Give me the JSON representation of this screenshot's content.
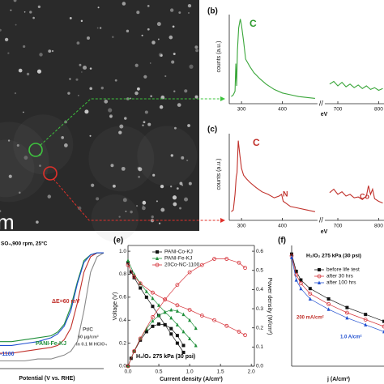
{
  "image": {
    "scale_label": "m"
  },
  "chart_data": [
    {
      "type": "line",
      "panel_label": "(b)",
      "xlabel": "eV",
      "ylabel": "counts (a.u.)",
      "xlim": [
        270,
        813
      ],
      "axis_break": [
        480,
        674
      ],
      "ylim": [
        0,
        1
      ],
      "xticks": [
        300,
        400,
        700,
        800
      ],
      "annotations": [
        "C"
      ],
      "series": [
        {
          "color": "#3aa63a",
          "x": [
            275,
            280,
            284,
            286,
            288,
            290,
            293,
            297,
            300,
            305,
            310,
            320,
            330,
            345,
            360,
            380,
            400,
            420,
            440,
            460,
            480
          ],
          "values": [
            0.08,
            0.1,
            0.14,
            0.45,
            0.2,
            0.6,
            0.85,
            0.95,
            0.88,
            0.7,
            0.5,
            0.42,
            0.35,
            0.28,
            0.22,
            0.16,
            0.12,
            0.1,
            0.08,
            0.07,
            0.06
          ]
        },
        {
          "color": "#3aa63a",
          "x": [
            680,
            690,
            700,
            710,
            720,
            730,
            740,
            750,
            760,
            770,
            780,
            790,
            800,
            810
          ],
          "values": [
            0.22,
            0.25,
            0.2,
            0.24,
            0.19,
            0.22,
            0.18,
            0.21,
            0.17,
            0.2,
            0.16,
            0.18,
            0.15,
            0.17
          ]
        }
      ]
    },
    {
      "type": "line",
      "panel_label": "(c)",
      "xlabel": "eV",
      "ylabel": "counts (a.u.)",
      "xlim": [
        270,
        813
      ],
      "axis_break": [
        480,
        674
      ],
      "ylim": [
        0,
        1
      ],
      "xticks": [
        300,
        400,
        700,
        800
      ],
      "annotations": [
        "C",
        "N",
        "Co"
      ],
      "series": [
        {
          "color": "#c0302a",
          "x": [
            275,
            280,
            284,
            287,
            289,
            292,
            296,
            300,
            305,
            312,
            320,
            335,
            350,
            365,
            380,
            392,
            398,
            402,
            408,
            420,
            440,
            460,
            480
          ],
          "values": [
            0.1,
            0.12,
            0.3,
            0.5,
            0.55,
            0.92,
            0.75,
            0.6,
            0.52,
            0.48,
            0.44,
            0.38,
            0.33,
            0.3,
            0.26,
            0.28,
            0.3,
            0.22,
            0.2,
            0.16,
            0.14,
            0.12,
            0.1
          ]
        },
        {
          "color": "#c0302a",
          "x": [
            680,
            690,
            700,
            710,
            720,
            730,
            740,
            750,
            760,
            770,
            775,
            780,
            785,
            790,
            800,
            810
          ],
          "values": [
            0.32,
            0.36,
            0.3,
            0.33,
            0.28,
            0.3,
            0.26,
            0.27,
            0.24,
            0.28,
            0.4,
            0.3,
            0.36,
            0.25,
            0.22,
            0.2
          ]
        }
      ]
    },
    {
      "type": "line",
      "xlabel": "Potential (V vs. RHE)",
      "xlim": [
        0.15,
        1.0
      ],
      "ylim": [
        -6,
        0.3
      ],
      "annotations": [
        "SO₄,900 rpm, 25°C",
        "ΔE=60 mV",
        "PANI-Fe-KJ",
        "-1100",
        "Pt/C",
        "60 μg/cm²",
        "in 0.1 M HClO₄"
      ],
      "series": [
        {
          "color": "#888888",
          "x": [
            0.2,
            0.3,
            0.4,
            0.5,
            0.6,
            0.65,
            0.7,
            0.75,
            0.8,
            0.85,
            0.9,
            0.95,
            1.0
          ],
          "values": [
            -5.6,
            -5.6,
            -5.6,
            -5.5,
            -5.5,
            -5.4,
            -5.3,
            -5.1,
            -4.6,
            -3.0,
            -1.0,
            -0.2,
            0
          ]
        },
        {
          "color": "#c0302a",
          "x": [
            0.2,
            0.3,
            0.4,
            0.5,
            0.6,
            0.65,
            0.7,
            0.75,
            0.8,
            0.85,
            0.9,
            0.95,
            1.0
          ],
          "values": [
            -5.2,
            -5.2,
            -5.1,
            -5.0,
            -4.9,
            -4.8,
            -4.5,
            -3.9,
            -2.6,
            -1.0,
            -0.2,
            0,
            0
          ]
        },
        {
          "color": "#1f8f3a",
          "x": [
            0.2,
            0.3,
            0.4,
            0.5,
            0.6,
            0.65,
            0.7,
            0.75,
            0.8,
            0.85,
            0.9,
            0.95,
            1.0
          ],
          "values": [
            -4.6,
            -4.6,
            -4.5,
            -4.4,
            -4.3,
            -4.1,
            -3.7,
            -2.8,
            -1.5,
            -0.4,
            -0.1,
            0,
            0
          ]
        },
        {
          "color": "#1f4fd0",
          "x": [
            0.2,
            0.3,
            0.4,
            0.5,
            0.6,
            0.65,
            0.7,
            0.75,
            0.8,
            0.85,
            0.9,
            0.95,
            1.0
          ],
          "values": [
            -4.8,
            -4.8,
            -4.7,
            -4.6,
            -4.4,
            -4.2,
            -3.8,
            -3.0,
            -1.6,
            -0.5,
            -0.1,
            0,
            0
          ]
        }
      ]
    },
    {
      "type": "line",
      "panel_label": "(e)",
      "xlabel": "Current density (A/cm²)",
      "ylabel": "Voltage (V)",
      "y2label": "Power density (W/cm²)",
      "xlim": [
        0,
        2.05
      ],
      "ylim": [
        0,
        1.05
      ],
      "y2lim": [
        0,
        0.63
      ],
      "xticks": [
        {
          "value": 0,
          "label": "0.0"
        },
        0.5,
        {
          "value": 1,
          "label": "1.0"
        },
        1.5,
        {
          "value": 2,
          "label": "2.0"
        }
      ],
      "yticks": [
        {
          "value": 0,
          "label": "0.0"
        },
        0.2,
        0.4,
        0.6,
        0.8,
        {
          "value": 1,
          "label": "1.0"
        }
      ],
      "y2ticks": [
        {
          "value": 0,
          "label": "0.0"
        },
        0.1,
        0.2,
        0.3,
        0.4,
        0.5,
        0.6
      ],
      "annotations": [
        "H₂/O₂ 275 kPa (30 psi)"
      ],
      "series": [
        {
          "name": "PANI-Co-KJ",
          "color": "#111111",
          "marker": "square",
          "x": [
            0,
            0.05,
            0.1,
            0.2,
            0.3,
            0.4,
            0.5,
            0.6,
            0.7,
            0.8,
            0.9
          ],
          "values": [
            0.9,
            0.82,
            0.77,
            0.68,
            0.6,
            0.52,
            0.44,
            0.36,
            0.28,
            0.2,
            0.12
          ]
        },
        {
          "name": "PANI-Fe-KJ",
          "color": "#1f8f3a",
          "marker": "triangle",
          "x": [
            0,
            0.1,
            0.2,
            0.3,
            0.4,
            0.5,
            0.6,
            0.7,
            0.8,
            0.9,
            1.0,
            1.1
          ],
          "values": [
            0.92,
            0.8,
            0.72,
            0.65,
            0.59,
            0.53,
            0.47,
            0.42,
            0.36,
            0.3,
            0.24,
            0.18
          ]
        },
        {
          "name": "20Co-NC-1100",
          "color": "#d6333a",
          "marker": "circle",
          "x": [
            0,
            0.1,
            0.2,
            0.4,
            0.6,
            0.8,
            1.0,
            1.2,
            1.4,
            1.6,
            1.8,
            1.9
          ],
          "values": [
            0.88,
            0.78,
            0.72,
            0.64,
            0.58,
            0.53,
            0.49,
            0.44,
            0.4,
            0.35,
            0.3,
            0.27
          ]
        },
        {
          "color": "#111111",
          "marker": "square",
          "axis": "y2",
          "x": [
            0,
            0.05,
            0.1,
            0.2,
            0.3,
            0.4,
            0.5,
            0.6,
            0.7,
            0.8,
            0.9
          ],
          "values": [
            0,
            0.041,
            0.077,
            0.136,
            0.18,
            0.208,
            0.22,
            0.216,
            0.196,
            0.16,
            0.108
          ]
        },
        {
          "color": "#1f8f3a",
          "marker": "triangle",
          "axis": "y2",
          "x": [
            0,
            0.1,
            0.2,
            0.3,
            0.4,
            0.5,
            0.6,
            0.7,
            0.8,
            0.9,
            1.0,
            1.1
          ],
          "values": [
            0,
            0.08,
            0.144,
            0.195,
            0.236,
            0.265,
            0.282,
            0.294,
            0.288,
            0.27,
            0.24,
            0.198
          ]
        },
        {
          "color": "#d6333a",
          "marker": "circle",
          "axis": "y2",
          "x": [
            0,
            0.1,
            0.2,
            0.4,
            0.6,
            0.8,
            1.0,
            1.2,
            1.4,
            1.6,
            1.8,
            1.9
          ],
          "values": [
            0,
            0.078,
            0.144,
            0.256,
            0.348,
            0.424,
            0.49,
            0.528,
            0.56,
            0.56,
            0.54,
            0.513
          ]
        }
      ]
    },
    {
      "type": "line",
      "panel_label": "(f)",
      "xlabel": "j (A/cm²)",
      "xlim": [
        0,
        1.0
      ],
      "ylim": [
        0.3,
        1.0
      ],
      "annotations": [
        "H₂/O₂ 275 kPa (30 psi)",
        "200 mA/cm²",
        "1.0 A/cm²"
      ],
      "series": [
        {
          "name": "before life test",
          "color": "#111111",
          "marker": "square",
          "x": [
            0,
            0.05,
            0.1,
            0.2,
            0.4,
            0.6,
            0.8,
            1.0
          ],
          "values": [
            0.95,
            0.85,
            0.8,
            0.75,
            0.69,
            0.64,
            0.6,
            0.56
          ]
        },
        {
          "name": "after 30 hrs",
          "color": "#d6333a",
          "marker": "circle",
          "x": [
            0,
            0.05,
            0.1,
            0.2,
            0.4,
            0.6,
            0.8,
            1.0
          ],
          "values": [
            0.94,
            0.83,
            0.78,
            0.72,
            0.66,
            0.61,
            0.57,
            0.53
          ]
        },
        {
          "name": "after 100 hrs",
          "color": "#1f4fd0",
          "marker": "triangle",
          "x": [
            0,
            0.05,
            0.1,
            0.2,
            0.4,
            0.6,
            0.8,
            1.0
          ],
          "values": [
            0.93,
            0.8,
            0.75,
            0.69,
            0.63,
            0.58,
            0.54,
            0.5
          ]
        }
      ]
    }
  ]
}
